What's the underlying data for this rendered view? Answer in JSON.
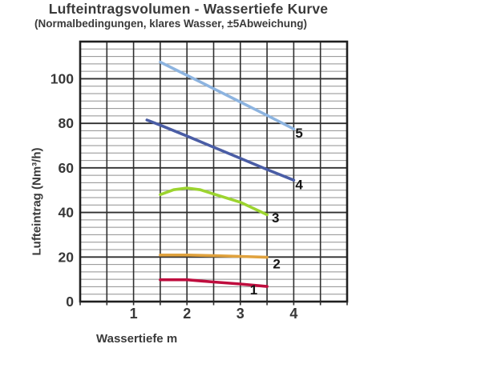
{
  "chart_data": {
    "type": "line",
    "title": "Lufteintragsvolumen - Wassertiefe Kurve",
    "subtitle": "(Normalbedingungen, klares Wasser, ±5Abweichung)",
    "xlabel": "Wassertiefe m",
    "ylabel": "Lufteintrag (Nm³/h)",
    "xlim": [
      0,
      5
    ],
    "ylim": [
      0,
      116.7
    ],
    "x_ticks": [
      1,
      2,
      3,
      4
    ],
    "y_ticks": [
      0,
      20,
      40,
      60,
      80,
      100
    ],
    "x_minor_step": 0.5,
    "y_minor_divisions_per_major": 6,
    "grid": "on",
    "legend_position": "inline-end-labels",
    "line_width": 3.6,
    "series": [
      {
        "name": "1",
        "color": "#bf0d3e",
        "points": [
          [
            1.5,
            9.8
          ],
          [
            2,
            9.8
          ],
          [
            2.5,
            8.8
          ],
          [
            3,
            7.9
          ],
          [
            3.5,
            6.8
          ]
        ],
        "label_pos": [
          3.25,
          5.2
        ]
      },
      {
        "name": "2",
        "color": "#e0a23e",
        "points": [
          [
            1.5,
            20.9
          ],
          [
            2,
            20.9
          ],
          [
            2.5,
            20.6
          ],
          [
            3,
            20.3
          ],
          [
            3.5,
            19.9
          ]
        ],
        "label_pos": [
          3.68,
          16.8
        ]
      },
      {
        "name": "3",
        "color": "#9cd42f",
        "points": [
          [
            1.5,
            48
          ],
          [
            1.75,
            50.2
          ],
          [
            2,
            51
          ],
          [
            2.25,
            50.2
          ],
          [
            2.5,
            48.3
          ],
          [
            3,
            44.6
          ],
          [
            3.5,
            39
          ]
        ],
        "label_pos": [
          3.66,
          37.5
        ]
      },
      {
        "name": "4",
        "color": "#4a5da5",
        "points": [
          [
            1.25,
            81.5
          ],
          [
            1.5,
            79.2
          ],
          [
            2,
            74.3
          ],
          [
            2.5,
            69.3
          ],
          [
            3,
            64.3
          ],
          [
            3.5,
            59.3
          ],
          [
            4,
            54.5
          ]
        ],
        "label_pos": [
          4.1,
          52.5
        ]
      },
      {
        "name": "5",
        "color": "#8db4e0",
        "points": [
          [
            1.5,
            107.5
          ],
          [
            2,
            101.6
          ],
          [
            2.5,
            95.6
          ],
          [
            3,
            89.6
          ],
          [
            3.5,
            83.6
          ],
          [
            4,
            77.5
          ]
        ],
        "label_pos": [
          4.1,
          75.5
        ]
      }
    ],
    "colors": {
      "grid_minor": "#8f8f8f",
      "grid_major": "#2f2f2f",
      "border": "#1f1f1f",
      "tick_text": "#383838",
      "series_label_text": "#151515"
    }
  }
}
